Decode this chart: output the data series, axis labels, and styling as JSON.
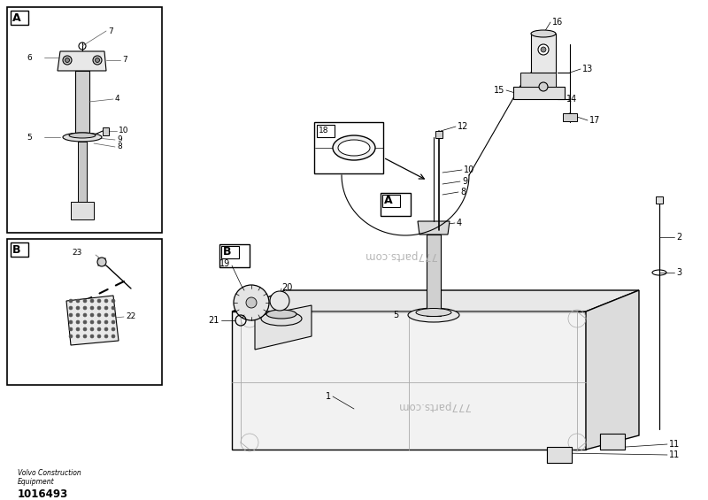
{
  "background_color": "#ffffff",
  "fig_width": 8.0,
  "fig_height": 5.65,
  "watermark_text": "777parts.com",
  "watermark_text2": "777parts.com",
  "footer_line1": "Volvo Construction",
  "footer_line2": "Equipment",
  "footer_line3": "1016493"
}
